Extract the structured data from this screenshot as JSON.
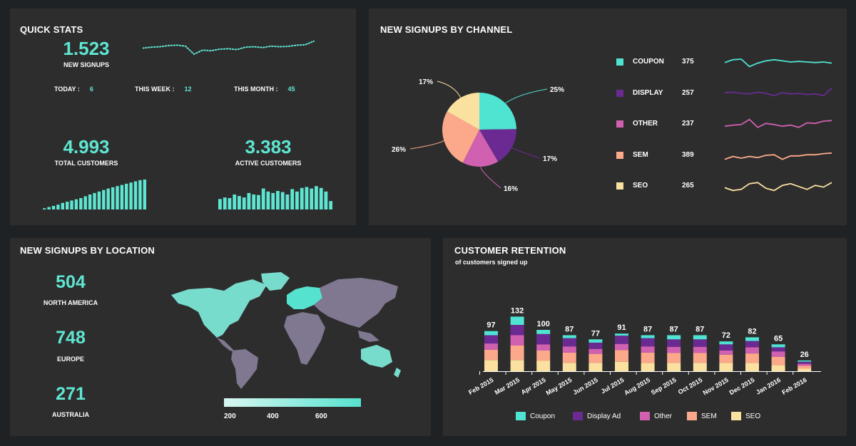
{
  "quick_stats": {
    "title": "QUICK STATS",
    "new_signups": {
      "value": "1.523",
      "label": "NEW SIGNUPS"
    },
    "today": {
      "label": "TODAY :",
      "value": "6"
    },
    "this_week": {
      "label": "THIS WEEK :",
      "value": "12"
    },
    "this_month": {
      "label": "THIS MONTH :",
      "value": "45"
    },
    "total_customers": {
      "value": "4.993",
      "label": "TOTAL CUSTOMERS"
    },
    "active_customers": {
      "value": "3.383",
      "label": "ACTIVE CUSTOMERS"
    },
    "signups_sparkline": [
      0.55,
      0.6,
      0.62,
      0.68,
      0.7,
      0.65,
      0.25,
      0.45,
      0.42,
      0.5,
      0.52,
      0.48,
      0.6,
      0.62,
      0.58,
      0.65,
      0.62,
      0.64,
      0.7,
      0.72,
      0.9
    ],
    "total_bars": [
      0.04,
      0.08,
      0.12,
      0.16,
      0.22,
      0.26,
      0.3,
      0.34,
      0.38,
      0.44,
      0.5,
      0.55,
      0.6,
      0.65,
      0.7,
      0.74,
      0.78,
      0.82,
      0.86,
      0.9,
      0.94,
      0.98,
      1.0
    ],
    "active_bars": [
      0.35,
      0.4,
      0.38,
      0.5,
      0.45,
      0.4,
      0.55,
      0.5,
      0.48,
      0.7,
      0.6,
      0.55,
      0.62,
      0.58,
      0.5,
      0.68,
      0.6,
      0.72,
      0.75,
      0.7,
      0.78,
      0.72,
      0.6,
      0.28
    ]
  },
  "channel": {
    "title": "NEW SIGNUPS BY CHANNEL",
    "pie_labels": [
      "25%",
      "17%",
      "16%",
      "26%",
      "17%"
    ],
    "rows": [
      {
        "name": "COUPON",
        "value": "375",
        "color": "#4fe3d1",
        "spark": [
          0.45,
          0.7,
          0.75,
          0.1,
          0.4,
          0.6,
          0.7,
          0.6,
          0.5,
          0.55,
          0.5,
          0.45,
          0.5,
          0.4
        ]
      },
      {
        "name": "DISPLAY",
        "value": "257",
        "color": "#6a2a92",
        "spark": [
          0.55,
          0.6,
          0.5,
          0.45,
          0.6,
          0.5,
          0.3,
          0.55,
          0.45,
          0.5,
          0.4,
          0.45,
          0.3,
          0.95
        ]
      },
      {
        "name": "OTHER",
        "value": "237",
        "color": "#d060b0",
        "spark": [
          0.3,
          0.4,
          0.45,
          0.9,
          0.2,
          0.55,
          0.45,
          0.3,
          0.4,
          0.2,
          0.6,
          0.55,
          0.75,
          0.8
        ]
      },
      {
        "name": "SEM",
        "value": "389",
        "color": "#fba98a",
        "spark": [
          0.15,
          0.4,
          0.25,
          0.4,
          0.3,
          0.5,
          0.55,
          0.15,
          0.45,
          0.45,
          0.55,
          0.55,
          0.65,
          0.7
        ]
      },
      {
        "name": "SEO",
        "value": "265",
        "color": "#fbe1a0",
        "spark": [
          0.35,
          0.1,
          0.2,
          0.7,
          0.8,
          0.3,
          0.1,
          0.55,
          0.7,
          0.45,
          0.2,
          0.55,
          0.4,
          0.8
        ]
      }
    ]
  },
  "location": {
    "title": "NEW SIGNUPS BY LOCATION",
    "regions": [
      {
        "value": "504",
        "label": "NORTH AMERICA"
      },
      {
        "value": "748",
        "label": "EUROPE"
      },
      {
        "value": "271",
        "label": "AUSTRALIA"
      }
    ],
    "scale": [
      "200",
      "400",
      "600"
    ]
  },
  "retention": {
    "title": "CUSTOMER RETENTION",
    "subtitle": "of customers signed up",
    "legend": [
      {
        "name": "Coupon",
        "color": "#4fe3d1"
      },
      {
        "name": "Display Ad",
        "color": "#6a2a92"
      },
      {
        "name": "Other",
        "color": "#d060b0"
      },
      {
        "name": "SEM",
        "color": "#fba98a"
      },
      {
        "name": "SEO",
        "color": "#fbe1a0"
      }
    ],
    "chart_data": {
      "type": "bar",
      "categories": [
        "Feb 2015",
        "Mar 2015",
        "Apr 2015",
        "May 2015",
        "Jun 2015",
        "Jul 2015",
        "Aug 2015",
        "Sep 2015",
        "Oct 2015",
        "Nov 2015",
        "Dec 2015",
        "Jan 2016",
        "Feb 2016"
      ],
      "totals": [
        97,
        132,
        100,
        87,
        77,
        91,
        87,
        87,
        87,
        72,
        82,
        65,
        26
      ],
      "series": [
        {
          "name": "Coupon",
          "values": [
            10,
            20,
            10,
            7,
            8,
            5,
            7,
            10,
            10,
            7,
            9,
            7,
            3
          ]
        },
        {
          "name": "Display Ad",
          "values": [
            20,
            25,
            25,
            20,
            15,
            20,
            20,
            18,
            18,
            15,
            15,
            10,
            5
          ]
        },
        {
          "name": "Other",
          "values": [
            15,
            25,
            15,
            15,
            12,
            15,
            15,
            15,
            15,
            10,
            15,
            13,
            5
          ]
        },
        {
          "name": "SEM",
          "values": [
            25,
            35,
            25,
            25,
            22,
            28,
            25,
            24,
            24,
            20,
            23,
            20,
            7
          ]
        },
        {
          "name": "SEO",
          "values": [
            27,
            27,
            25,
            20,
            20,
            23,
            20,
            20,
            20,
            20,
            20,
            15,
            6
          ]
        }
      ]
    }
  }
}
